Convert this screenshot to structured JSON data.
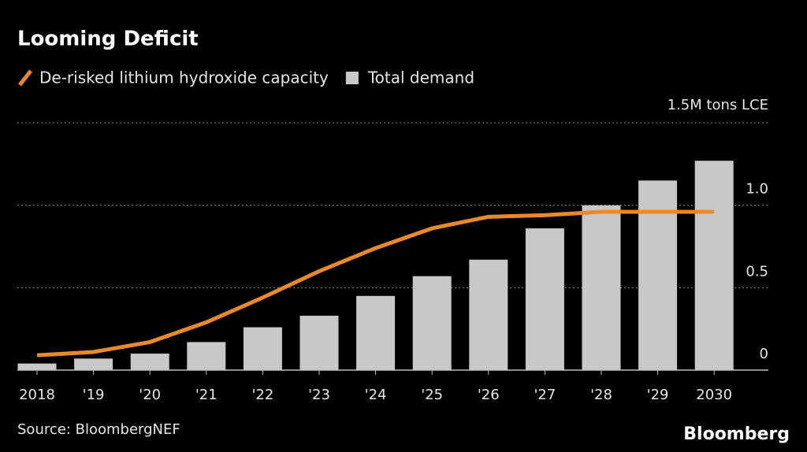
{
  "chart_data": {
    "type": "bar",
    "title": "Looming Deficit",
    "categories": [
      "2018",
      "'19",
      "'20",
      "'21",
      "'22",
      "'23",
      "'24",
      "'25",
      "'26",
      "'27",
      "'28",
      "'29",
      "2030"
    ],
    "series": [
      {
        "name": "De-risked lithium hydroxide capacity",
        "type": "line",
        "color": "#e8892b",
        "values": [
          0.09,
          0.11,
          0.17,
          0.29,
          0.44,
          0.6,
          0.74,
          0.86,
          0.93,
          0.94,
          0.96,
          0.96,
          0.96
        ]
      },
      {
        "name": "Total demand",
        "type": "bar",
        "color": "#c8c8c8",
        "values": [
          0.04,
          0.07,
          0.1,
          0.17,
          0.26,
          0.33,
          0.45,
          0.57,
          0.67,
          0.86,
          1.0,
          1.15,
          1.27
        ]
      }
    ],
    "ylim": [
      0,
      1.5
    ],
    "yticks": [
      0,
      0.5,
      {
        "value": 1,
        "label": "1.0"
      },
      {
        "value": 1.5,
        "label": "1.5M tons LCE"
      }
    ],
    "grid": true,
    "source": "Source: BloombergNEF",
    "brand": "Bloomberg"
  }
}
